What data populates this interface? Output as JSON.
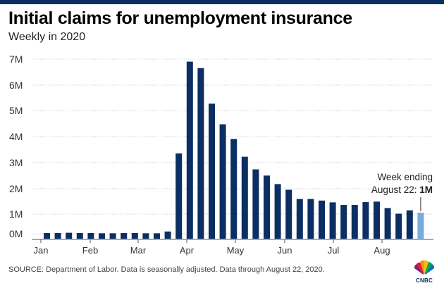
{
  "chart_data": {
    "type": "bar",
    "title": "Initial claims for unemployment insurance",
    "subtitle": "Weekly in 2020",
    "source": "SOURCE: Department of Labor. Data is seasonally adjusted. Data through August 22, 2020.",
    "y_ticks": [
      "0M",
      "1M",
      "2M",
      "3M",
      "4M",
      "5M",
      "6M",
      "7M"
    ],
    "y_tick_values": [
      0,
      1,
      2,
      3,
      4,
      5,
      6,
      7
    ],
    "x_tick_labels": [
      "Jan",
      "Feb",
      "Mar",
      "Apr",
      "May",
      "Jun",
      "Jul",
      "Aug"
    ],
    "ylim": [
      0,
      7.2
    ],
    "grid": true,
    "values": [
      0.22,
      0.22,
      0.23,
      0.22,
      0.22,
      0.21,
      0.21,
      0.22,
      0.22,
      0.21,
      0.21,
      0.28,
      3.31,
      6.87,
      6.62,
      5.24,
      4.44,
      3.87,
      3.18,
      2.69,
      2.45,
      2.12,
      1.9,
      1.54,
      1.54,
      1.48,
      1.41,
      1.31,
      1.31,
      1.42,
      1.44,
      1.19,
      0.97,
      1.1,
      1.01
    ],
    "highlight_index": 34,
    "annotation": {
      "line1": "Week ending",
      "line2": "August 22: ",
      "value": "1M"
    },
    "colors": {
      "bar": "#0b2e63",
      "highlight": "#79acdc",
      "grid": "#c8c8c8",
      "axis": "#555555",
      "brand": "#0b2e63"
    }
  },
  "branding": {
    "logo_text": "CNBC"
  }
}
